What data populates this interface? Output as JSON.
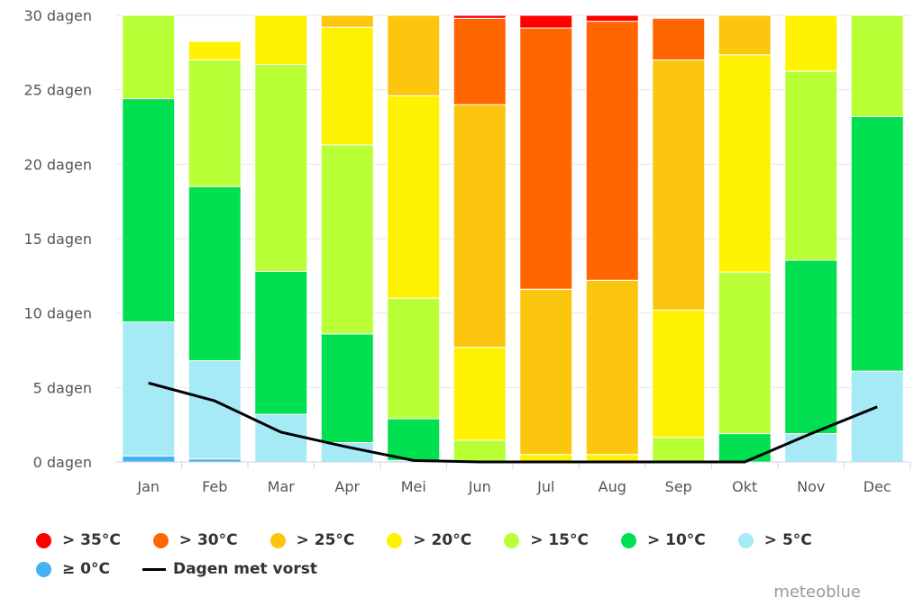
{
  "chart_data": {
    "type": "bar",
    "stacked": true,
    "categories": [
      "Jan",
      "Feb",
      "Mar",
      "Apr",
      "Mei",
      "Jun",
      "Jul",
      "Aug",
      "Sep",
      "Okt",
      "Nov",
      "Dec"
    ],
    "ylim": [
      0,
      30
    ],
    "yticks": [
      0,
      5,
      10,
      15,
      20,
      25,
      30
    ],
    "ytick_labels": [
      "0 dagen",
      "5 dagen",
      "10 dagen",
      "15 dagen",
      "20 dagen",
      "25 dagen",
      "30 dagen"
    ],
    "grid": true,
    "legend_placement": "bottom",
    "series": [
      {
        "name": "≥ 0°C",
        "color": "#46b0f5",
        "values": [
          0.4,
          0.2,
          0,
          0,
          0,
          0,
          0,
          0,
          0,
          0,
          0,
          0
        ]
      },
      {
        "name": "> 5°C",
        "color": "#a6eaf5",
        "values": [
          9.0,
          6.6,
          3.2,
          1.3,
          0.1,
          0,
          0,
          0,
          0,
          0,
          1.9,
          6.1
        ]
      },
      {
        "name": "> 10°C",
        "color": "#00e050",
        "values": [
          15.0,
          11.7,
          9.6,
          7.3,
          2.8,
          0,
          0,
          0,
          0,
          1.9,
          11.65,
          17.1
        ]
      },
      {
        "name": "> 15°C",
        "color": "#b8ff36",
        "values": [
          5.6,
          8.5,
          13.9,
          12.7,
          8.1,
          1.45,
          0,
          0,
          1.65,
          10.85,
          12.7,
          6.8
        ]
      },
      {
        "name": "> 20°C",
        "color": "#fff200",
        "values": [
          0,
          1.25,
          3.3,
          7.9,
          13.6,
          6.25,
          0.5,
          0.5,
          8.55,
          14.6,
          3.75,
          0
        ]
      },
      {
        "name": "> 25°C",
        "color": "#fcc60f",
        "values": [
          0,
          0,
          0,
          0.8,
          5.4,
          16.3,
          11.1,
          11.7,
          16.8,
          2.65,
          0,
          0
        ]
      },
      {
        "name": "> 30°C",
        "color": "#ff6600",
        "values": [
          0,
          0,
          0,
          0,
          0,
          5.8,
          17.55,
          17.4,
          2.8,
          0,
          0,
          0
        ]
      },
      {
        "name": "> 35°C",
        "color": "#ff0000",
        "values": [
          0,
          0,
          0,
          0,
          0,
          0.2,
          0.85,
          0.4,
          0,
          0,
          0,
          0
        ]
      }
    ],
    "line_series": {
      "name": "Dagen met vorst",
      "color": "#000000",
      "values": [
        5.3,
        4.1,
        2.0,
        1.0,
        0.1,
        0,
        0,
        0,
        0,
        0,
        1.9,
        3.7
      ]
    }
  },
  "credit": "meteoblue"
}
